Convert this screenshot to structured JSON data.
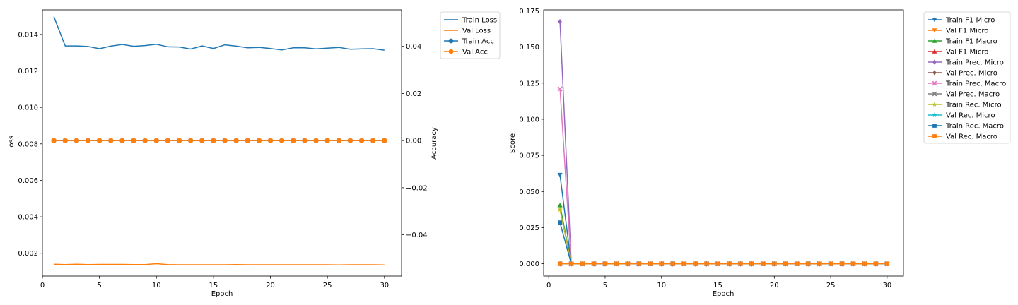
{
  "chart_data": [
    {
      "type": "line",
      "xlabel": "Epoch",
      "ylabel": "Loss",
      "ylabel_right": "Accuracy",
      "x": [
        1,
        2,
        3,
        4,
        5,
        6,
        7,
        8,
        9,
        10,
        11,
        12,
        13,
        14,
        15,
        16,
        17,
        18,
        19,
        20,
        21,
        22,
        23,
        24,
        25,
        26,
        27,
        28,
        29,
        30
      ],
      "xlim": [
        0.0,
        31.5
      ],
      "ylim": [
        0.00075,
        0.01535
      ],
      "ylim_right": [
        -0.0575,
        0.0555
      ],
      "xticks": [
        0,
        5,
        10,
        15,
        20,
        25,
        30
      ],
      "xtick_labels": [
        "0",
        "5",
        "10",
        "15",
        "20",
        "25",
        "30"
      ],
      "yticks": [
        0.002,
        0.004,
        0.006,
        0.008,
        0.01,
        0.012,
        0.014
      ],
      "ytick_labels": [
        "0.002",
        "0.004",
        "0.006",
        "0.008",
        "0.010",
        "0.012",
        "0.014"
      ],
      "yticks_right": [
        -0.04,
        -0.02,
        0.0,
        0.02,
        0.04
      ],
      "ytick_labels_right": [
        "−0.04",
        "−0.02",
        "0.00",
        "0.02",
        "0.04"
      ],
      "legend_position": "outside top-right",
      "series": [
        {
          "name": "Train Loss",
          "axis": "left",
          "color": "#1f77b4",
          "marker": "none",
          "values": [
            0.01498,
            0.01337,
            0.01337,
            0.01334,
            0.01322,
            0.01336,
            0.01345,
            0.01335,
            0.01339,
            0.01346,
            0.01332,
            0.01331,
            0.0132,
            0.01337,
            0.01323,
            0.01343,
            0.01336,
            0.01327,
            0.01329,
            0.01323,
            0.01315,
            0.01327,
            0.01327,
            0.01321,
            0.01325,
            0.01329,
            0.01319,
            0.01321,
            0.01322,
            0.01314
          ]
        },
        {
          "name": "Val Loss",
          "axis": "left",
          "color": "#ff7f0e",
          "marker": "none",
          "values": [
            0.0014,
            0.00138,
            0.0014,
            0.00138,
            0.00139,
            0.00139,
            0.00139,
            0.00138,
            0.00138,
            0.00143,
            0.00138,
            0.00137,
            0.00137,
            0.00137,
            0.00137,
            0.00137,
            0.00138,
            0.00137,
            0.00137,
            0.00137,
            0.00137,
            0.00137,
            0.00137,
            0.00137,
            0.00137,
            0.00136,
            0.00137,
            0.00137,
            0.00137,
            0.00136
          ]
        },
        {
          "name": "Train Acc",
          "axis": "right",
          "color": "#1f77b4",
          "marker": "circle",
          "values": [
            0,
            0,
            0,
            0,
            0,
            0,
            0,
            0,
            0,
            0,
            0,
            0,
            0,
            0,
            0,
            0,
            0,
            0,
            0,
            0,
            0,
            0,
            0,
            0,
            0,
            0,
            0,
            0,
            0,
            0
          ]
        },
        {
          "name": "Val Acc",
          "axis": "right",
          "color": "#ff7f0e",
          "marker": "circle",
          "values": [
            0,
            0,
            0,
            0,
            0,
            0,
            0,
            0,
            0,
            0,
            0,
            0,
            0,
            0,
            0,
            0,
            0,
            0,
            0,
            0,
            0,
            0,
            0,
            0,
            0,
            0,
            0,
            0,
            0,
            0
          ]
        }
      ]
    },
    {
      "type": "line",
      "xlabel": "Epoch",
      "ylabel": "Score",
      "x": [
        1,
        2,
        3,
        4,
        5,
        6,
        7,
        8,
        9,
        10,
        11,
        12,
        13,
        14,
        15,
        16,
        17,
        18,
        19,
        20,
        21,
        22,
        23,
        24,
        25,
        26,
        27,
        28,
        29,
        30
      ],
      "xlim": [
        -0.45,
        31.45
      ],
      "ylim": [
        -0.0085,
        0.1757
      ],
      "xticks": [
        0,
        5,
        10,
        15,
        20,
        25,
        30
      ],
      "xtick_labels": [
        "0",
        "5",
        "10",
        "15",
        "20",
        "25",
        "30"
      ],
      "yticks": [
        0.0,
        0.025,
        0.05,
        0.075,
        0.1,
        0.125,
        0.15,
        0.175
      ],
      "ytick_labels": [
        "0.000",
        "0.025",
        "0.050",
        "0.075",
        "0.100",
        "0.125",
        "0.150",
        "0.175"
      ],
      "legend_position": "outside top-right",
      "series": [
        {
          "name": "Train F1 Micro",
          "color": "#1f77b4",
          "marker": "triangle-down",
          "values": [
            0.0615,
            0,
            0,
            0,
            0,
            0,
            0,
            0,
            0,
            0,
            0,
            0,
            0,
            0,
            0,
            0,
            0,
            0,
            0,
            0,
            0,
            0,
            0,
            0,
            0,
            0,
            0,
            0,
            0,
            0
          ]
        },
        {
          "name": "Val F1 Micro",
          "color": "#ff7f0e",
          "marker": "triangle-down",
          "values": [
            0,
            0,
            0,
            0,
            0,
            0,
            0,
            0,
            0,
            0,
            0,
            0,
            0,
            0,
            0,
            0,
            0,
            0,
            0,
            0,
            0,
            0,
            0,
            0,
            0,
            0,
            0,
            0,
            0,
            0
          ]
        },
        {
          "name": "Train F1 Macro",
          "color": "#2ca02c",
          "marker": "triangle-up",
          "values": [
            0.0405,
            0,
            0,
            0,
            0,
            0,
            0,
            0,
            0,
            0,
            0,
            0,
            0,
            0,
            0,
            0,
            0,
            0,
            0,
            0,
            0,
            0,
            0,
            0,
            0,
            0,
            0,
            0,
            0,
            0
          ]
        },
        {
          "name": "Val F1 Micro",
          "color": "#d62728",
          "marker": "triangle-up",
          "values": [
            0,
            0,
            0,
            0,
            0,
            0,
            0,
            0,
            0,
            0,
            0,
            0,
            0,
            0,
            0,
            0,
            0,
            0,
            0,
            0,
            0,
            0,
            0,
            0,
            0,
            0,
            0,
            0,
            0,
            0
          ]
        },
        {
          "name": "Train Prec. Micro",
          "color": "#9467bd",
          "marker": "diamond",
          "values": [
            0.1675,
            0,
            0,
            0,
            0,
            0,
            0,
            0,
            0,
            0,
            0,
            0,
            0,
            0,
            0,
            0,
            0,
            0,
            0,
            0,
            0,
            0,
            0,
            0,
            0,
            0,
            0,
            0,
            0,
            0
          ]
        },
        {
          "name": "Val Prec. Micro",
          "color": "#8c564b",
          "marker": "diamond",
          "values": [
            0,
            0,
            0,
            0,
            0,
            0,
            0,
            0,
            0,
            0,
            0,
            0,
            0,
            0,
            0,
            0,
            0,
            0,
            0,
            0,
            0,
            0,
            0,
            0,
            0,
            0,
            0,
            0,
            0,
            0
          ]
        },
        {
          "name": "Train Prec. Macro",
          "color": "#e377c2",
          "marker": "x",
          "values": [
            0.121,
            0,
            0,
            0,
            0,
            0,
            0,
            0,
            0,
            0,
            0,
            0,
            0,
            0,
            0,
            0,
            0,
            0,
            0,
            0,
            0,
            0,
            0,
            0,
            0,
            0,
            0,
            0,
            0,
            0
          ]
        },
        {
          "name": "Val Prec. Macro",
          "color": "#7f7f7f",
          "marker": "x",
          "values": [
            0,
            0,
            0,
            0,
            0,
            0,
            0,
            0,
            0,
            0,
            0,
            0,
            0,
            0,
            0,
            0,
            0,
            0,
            0,
            0,
            0,
            0,
            0,
            0,
            0,
            0,
            0,
            0,
            0,
            0
          ]
        },
        {
          "name": "Train Rec. Micro",
          "color": "#bcbd22",
          "marker": "star",
          "values": [
            0.0375,
            0,
            0,
            0,
            0,
            0,
            0,
            0,
            0,
            0,
            0,
            0,
            0,
            0,
            0,
            0,
            0,
            0,
            0,
            0,
            0,
            0,
            0,
            0,
            0,
            0,
            0,
            0,
            0,
            0
          ]
        },
        {
          "name": "Val Rec. Micro",
          "color": "#17becf",
          "marker": "star",
          "values": [
            0,
            0,
            0,
            0,
            0,
            0,
            0,
            0,
            0,
            0,
            0,
            0,
            0,
            0,
            0,
            0,
            0,
            0,
            0,
            0,
            0,
            0,
            0,
            0,
            0,
            0,
            0,
            0,
            0,
            0
          ]
        },
        {
          "name": "Train Rec. Macro",
          "color": "#1f77b4",
          "marker": "square",
          "values": [
            0.0285,
            0,
            0,
            0,
            0,
            0,
            0,
            0,
            0,
            0,
            0,
            0,
            0,
            0,
            0,
            0,
            0,
            0,
            0,
            0,
            0,
            0,
            0,
            0,
            0,
            0,
            0,
            0,
            0,
            0
          ]
        },
        {
          "name": "Val Rec. Macro",
          "color": "#ff7f0e",
          "marker": "square",
          "values": [
            0,
            0,
            0,
            0,
            0,
            0,
            0,
            0,
            0,
            0,
            0,
            0,
            0,
            0,
            0,
            0,
            0,
            0,
            0,
            0,
            0,
            0,
            0,
            0,
            0,
            0,
            0,
            0,
            0,
            0
          ]
        }
      ]
    }
  ]
}
